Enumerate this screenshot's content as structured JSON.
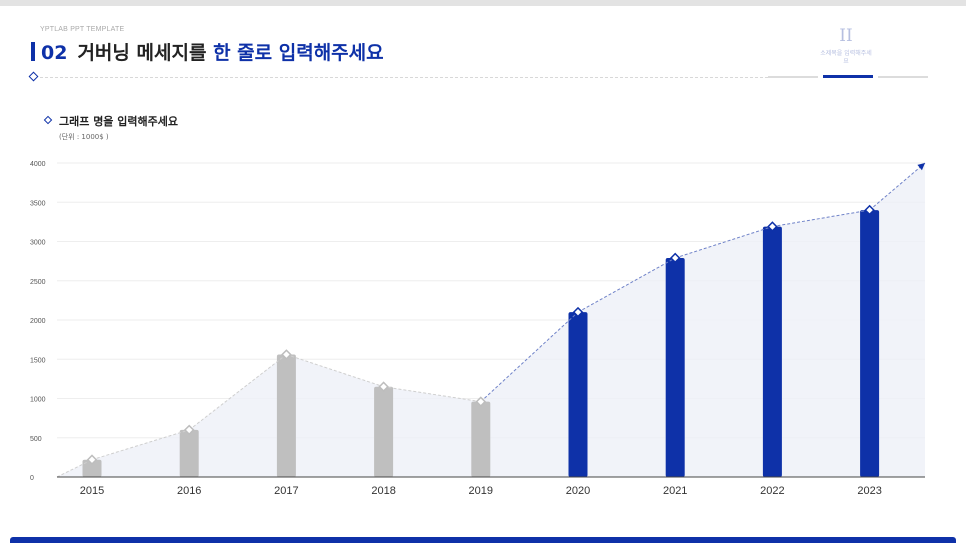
{
  "header": {
    "brand": "YPTLAB PPT TEMPLATE",
    "title_num": "02",
    "title_main": "거버닝 메세지를",
    "title_highlight": "한 줄로 입력해주세요",
    "section_roman": "II",
    "section_label": "소제목을 입력해주세요"
  },
  "graph": {
    "title": "그래프 명을 입력해주세요",
    "unit": "(단위 : 1000$ )"
  },
  "colors": {
    "accent": "#0e31a8",
    "muted": "#bfbfbf",
    "area": "#eef0f8"
  },
  "chart_data": {
    "type": "bar",
    "categories": [
      "2015",
      "2016",
      "2017",
      "2018",
      "2019",
      "2020",
      "2021",
      "2022",
      "2023"
    ],
    "values": [
      220,
      600,
      1560,
      1150,
      960,
      2100,
      2790,
      3190,
      3400
    ],
    "highlight_from": 5,
    "trend_end": 4000,
    "ylim": [
      0,
      4000
    ],
    "yticks": [
      0,
      500,
      1000,
      1500,
      2000,
      2500,
      3000,
      3500,
      4000
    ],
    "grid": true,
    "xlabel": "",
    "ylabel": ""
  }
}
